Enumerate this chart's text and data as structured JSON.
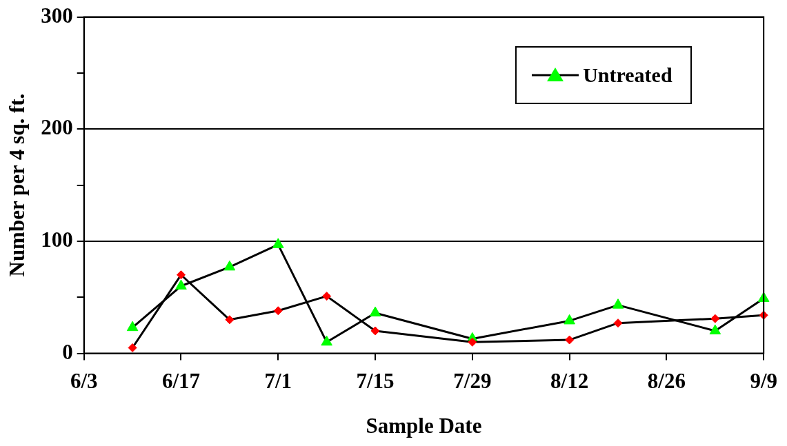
{
  "chart_data": {
    "type": "line",
    "xlabel": "Sample Date",
    "ylabel": "Number per 4 sq. ft.",
    "x": [
      "--06-10",
      "--06-17",
      "--06-24",
      "--07-01",
      "--07-08",
      "--07-15",
      "--07-29",
      "--08-12",
      "--08-19",
      "--09-02",
      "--09-09"
    ],
    "series": [
      {
        "name": "Untreated",
        "color": "#00ff00",
        "marker": "triangle",
        "values": [
          23,
          60,
          77,
          97,
          10,
          36,
          13,
          29,
          43,
          20,
          49
        ]
      },
      {
        "color": "#ff0000",
        "marker": "diamond",
        "values": [
          5,
          70,
          30,
          38,
          51,
          20,
          10,
          12,
          27,
          31,
          34
        ]
      }
    ],
    "xlim": [
      "--06-03",
      "--09-09"
    ],
    "xticks": [
      {
        "value": "--06-03",
        "label": "6/3"
      },
      {
        "value": "--06-17",
        "label": "6/17"
      },
      {
        "value": "--07-01",
        "label": "7/1"
      },
      {
        "value": "--07-15",
        "label": "7/15"
      },
      {
        "value": "--07-29",
        "label": "7/29"
      },
      {
        "value": "--08-12",
        "label": "8/12"
      },
      {
        "value": "--08-26",
        "label": "8/26"
      },
      {
        "value": "--09-09",
        "label": "9/9"
      }
    ],
    "ylim": [
      0,
      300
    ],
    "yticks": [
      0,
      {
        "value": 50,
        "label": null
      },
      100,
      {
        "value": 150,
        "label": null
      },
      200,
      {
        "value": 250,
        "label": null
      },
      300
    ],
    "grid": "y",
    "legend": "top right",
    "line_style": "solid"
  }
}
